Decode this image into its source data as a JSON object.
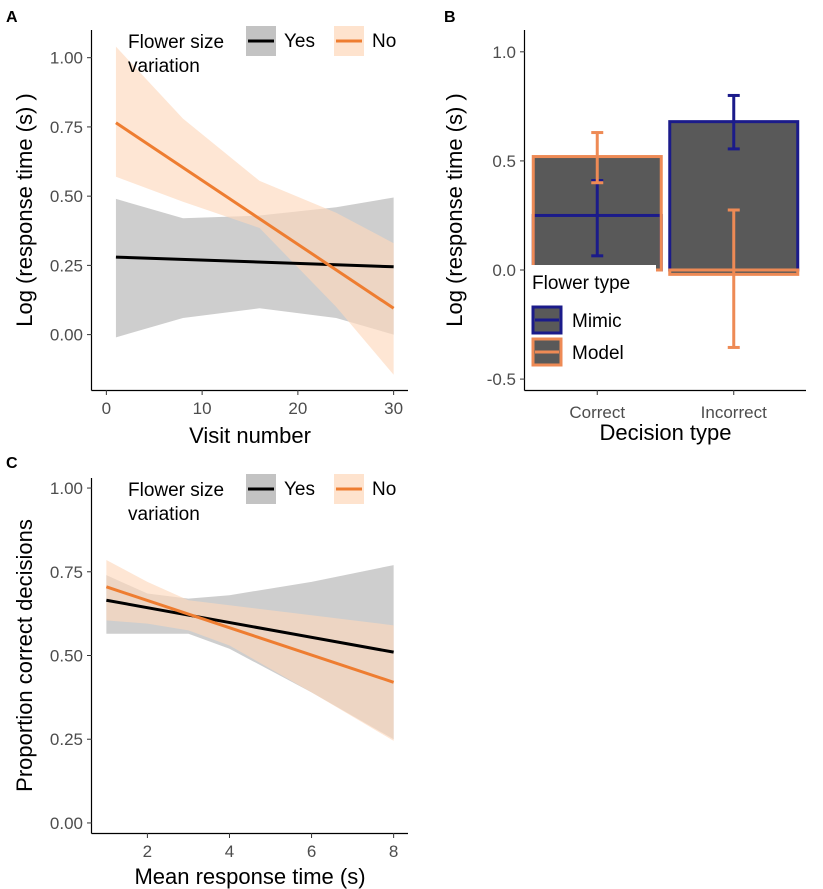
{
  "colors": {
    "yes": "#000000",
    "no": "#ee7d31",
    "yes_band": "#bdbdbd",
    "no_band": "#fdd9bd",
    "mimic": "#1b1b8a",
    "model": "#ee8a55",
    "bar_fill": "#595959"
  },
  "chart_data": [
    {
      "panel_label": "A",
      "type": "line",
      "xlabel": "Visit number",
      "ylabel": "Log (response time (s) )",
      "xlim": [
        -1.5,
        31.5
      ],
      "ylim": [
        -0.2,
        1.1
      ],
      "xticks": [
        0,
        10,
        20,
        30
      ],
      "yticks": [
        "0.00",
        "0.25",
        "0.50",
        "0.75",
        "1.00"
      ],
      "grid": false,
      "legend_title": "Flower size variation",
      "legend_title_lines": [
        "Flower size",
        "variation"
      ],
      "legend_position": "top-left inside",
      "series": [
        {
          "name": "Yes",
          "x": [
            1,
            30
          ],
          "y": [
            0.28,
            0.245
          ],
          "band_x": [
            1,
            8,
            16,
            24,
            30
          ],
          "band_upper": [
            0.49,
            0.42,
            0.43,
            0.46,
            0.495
          ],
          "band_lower": [
            -0.01,
            0.06,
            0.095,
            0.06,
            0.0
          ]
        },
        {
          "name": "No",
          "x": [
            1,
            30
          ],
          "y": [
            0.765,
            0.095
          ],
          "band_x": [
            1,
            8,
            16,
            24,
            30
          ],
          "band_upper": [
            1.04,
            0.78,
            0.555,
            0.44,
            0.33
          ],
          "band_lower": [
            0.57,
            0.48,
            0.385,
            0.1,
            -0.145
          ]
        }
      ]
    },
    {
      "panel_label": "B",
      "type": "bar",
      "xlabel": "Decision type",
      "ylabel": "Log (response time (s) )",
      "categories": [
        "Correct",
        "Incorrect"
      ],
      "ylim": [
        -0.55,
        1.1
      ],
      "yticks": [
        "-0.5",
        "0.0",
        "0.5",
        "1.0"
      ],
      "grid": false,
      "legend_title": "Flower type",
      "legend_position": "inside bottom-left",
      "series": [
        {
          "name": "Mimic",
          "values": [
            0.25,
            0.68
          ],
          "err_low": [
            0.065,
            0.555
          ],
          "err_high": [
            0.41,
            0.8
          ]
        },
        {
          "name": "Model",
          "values": [
            0.52,
            -0.02
          ],
          "err_low": [
            0.4,
            -0.355
          ],
          "err_high": [
            0.63,
            0.275
          ]
        }
      ]
    },
    {
      "panel_label": "C",
      "type": "line",
      "xlabel": "Mean response time (s)",
      "ylabel": "Proportion correct decisions",
      "xlim": [
        0.65,
        8.35
      ],
      "ylim": [
        -0.03,
        1.03
      ],
      "xticks": [
        2,
        4,
        6,
        8
      ],
      "yticks": [
        "0.00",
        "0.25",
        "0.50",
        "0.75",
        "1.00"
      ],
      "grid": false,
      "legend_title": "Flower size variation",
      "legend_title_lines": [
        "Flower size",
        "variation"
      ],
      "legend_position": "top-left inside",
      "series": [
        {
          "name": "Yes",
          "x": [
            1,
            8
          ],
          "y": [
            0.665,
            0.51
          ],
          "band_x": [
            1,
            2,
            3,
            4,
            6,
            8
          ],
          "band_upper": [
            0.74,
            0.685,
            0.67,
            0.68,
            0.72,
            0.77
          ],
          "band_lower": [
            0.565,
            0.565,
            0.565,
            0.52,
            0.39,
            0.25
          ]
        },
        {
          "name": "No",
          "x": [
            1,
            8
          ],
          "y": [
            0.705,
            0.42
          ],
          "band_x": [
            1,
            2,
            3,
            4,
            6,
            8
          ],
          "band_upper": [
            0.785,
            0.72,
            0.665,
            0.65,
            0.62,
            0.59
          ],
          "band_lower": [
            0.605,
            0.595,
            0.575,
            0.53,
            0.39,
            0.245
          ]
        }
      ]
    }
  ]
}
